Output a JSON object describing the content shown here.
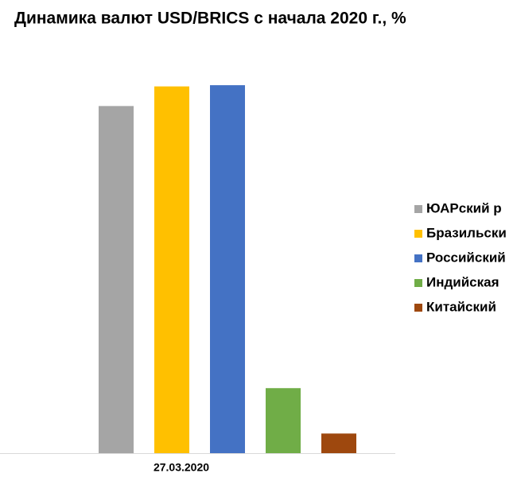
{
  "chart_data": {
    "type": "bar",
    "title": "Динамика валют USD/BRICS с начала 2020 г., %",
    "categories": [
      "27.03.2020"
    ],
    "series": [
      {
        "name": "ЮАРский р",
        "color": "#a5a5a5",
        "values": [
          28.3
        ]
      },
      {
        "name": "Бразильски",
        "color": "#ffc000",
        "values": [
          29.9
        ]
      },
      {
        "name": "Российский",
        "color": "#4472c4",
        "values": [
          30.0
        ]
      },
      {
        "name": "Индийская",
        "color": "#70ad47",
        "values": [
          5.3
        ]
      },
      {
        "name": "Китайский",
        "color": "#9e480e",
        "values": [
          1.6
        ]
      }
    ],
    "ylim": [
      0,
      35
    ],
    "legend": "right"
  }
}
